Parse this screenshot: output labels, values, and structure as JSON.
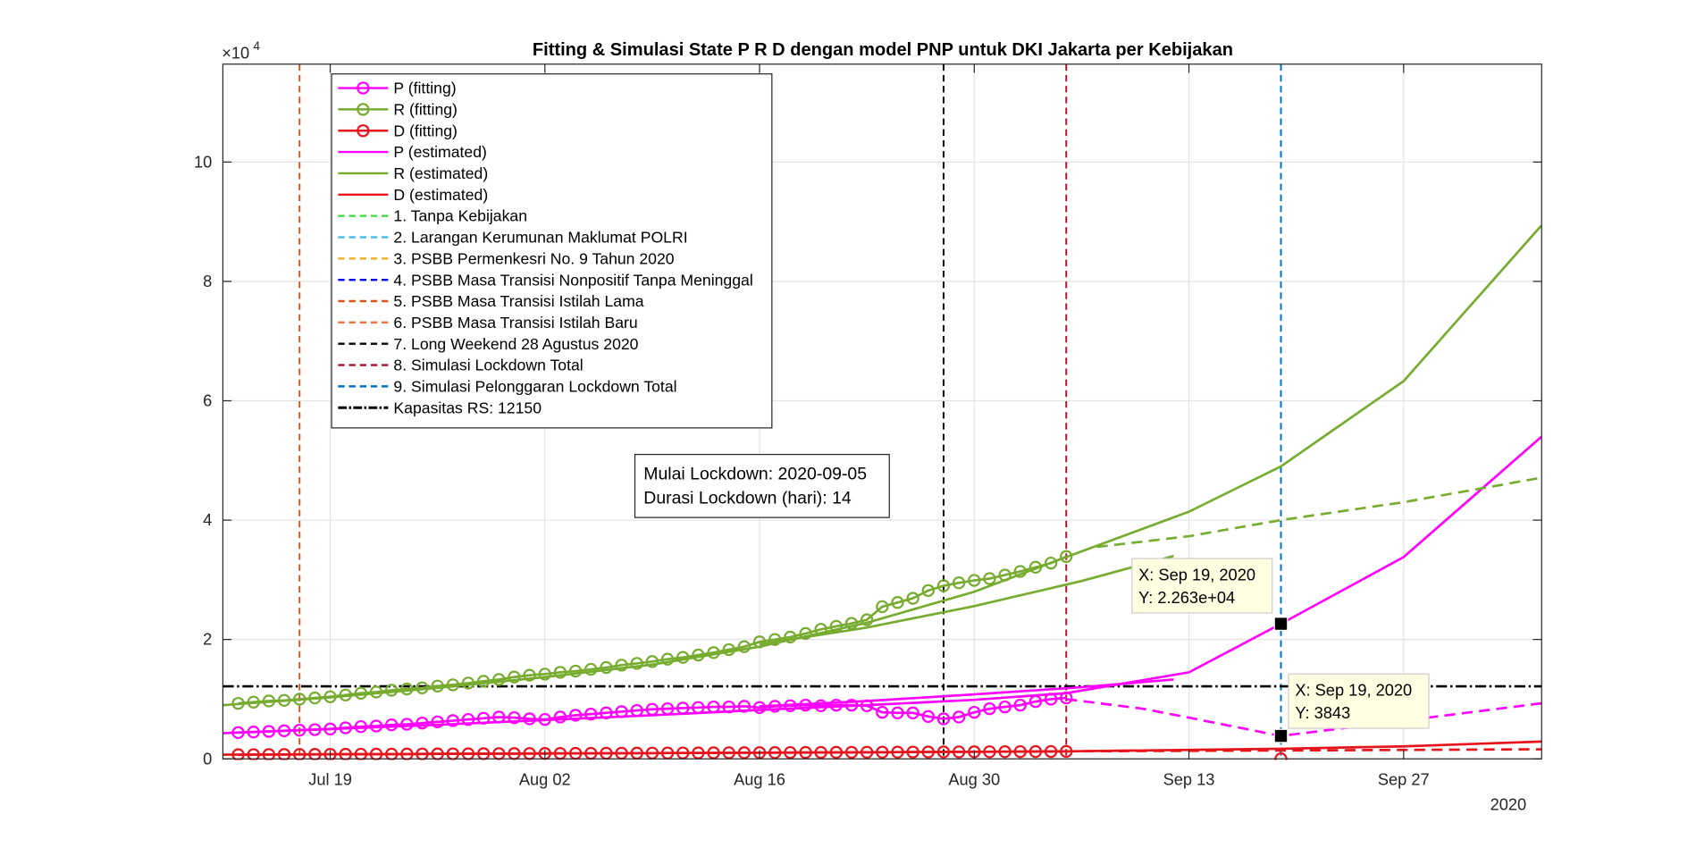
{
  "chart_data": {
    "type": "line",
    "title": "Fitting & Simulasi State  P R D dengan model PNP untuk DKI Jakarta per Kebijakan",
    "y_exponent": {
      "base": "×10",
      "power": "4"
    },
    "x_year_label": "2020",
    "grid": true,
    "xlim": [
      "2020-07-12",
      "2020-10-06"
    ],
    "xticks": [
      {
        "value": "2020-07-19",
        "label": "Jul 19"
      },
      {
        "value": "2020-08-02",
        "label": "Aug 02"
      },
      {
        "value": "2020-08-16",
        "label": "Aug 16"
      },
      {
        "value": "2020-08-30",
        "label": "Aug 30"
      },
      {
        "value": "2020-09-13",
        "label": "Sep 13"
      },
      {
        "value": "2020-09-27",
        "label": "Sep 27"
      }
    ],
    "ylim": [
      0,
      116400
    ],
    "yticks": [
      0,
      {
        "value": 20000,
        "label": "2"
      },
      {
        "value": 40000,
        "label": "4"
      },
      {
        "value": 60000,
        "label": "6"
      },
      {
        "value": 80000,
        "label": "8"
      },
      {
        "value": 100000,
        "label": "10"
      }
    ],
    "x": [
      "2020-07-13",
      "2020-07-14",
      "2020-07-15",
      "2020-07-16",
      "2020-07-17",
      "2020-07-18",
      "2020-07-19",
      "2020-07-20",
      "2020-07-21",
      "2020-07-22",
      "2020-07-23",
      "2020-07-24",
      "2020-07-25",
      "2020-07-26",
      "2020-07-27",
      "2020-07-28",
      "2020-07-29",
      "2020-07-30",
      "2020-07-31",
      "2020-08-01",
      "2020-08-02",
      "2020-08-03",
      "2020-08-04",
      "2020-08-05",
      "2020-08-06",
      "2020-08-07",
      "2020-08-08",
      "2020-08-09",
      "2020-08-10",
      "2020-08-11",
      "2020-08-12",
      "2020-08-13",
      "2020-08-14",
      "2020-08-15",
      "2020-08-16",
      "2020-08-17",
      "2020-08-18",
      "2020-08-19",
      "2020-08-20",
      "2020-08-21",
      "2020-08-22",
      "2020-08-23",
      "2020-08-24",
      "2020-08-25",
      "2020-08-26",
      "2020-08-27",
      "2020-08-28",
      "2020-08-29",
      "2020-08-30",
      "2020-08-31",
      "2020-09-01",
      "2020-09-02",
      "2020-09-03",
      "2020-09-04",
      "2020-09-05"
    ],
    "series": [
      {
        "name": "P (fitting)",
        "color": "#ff00ff",
        "marker": "circle",
        "line": "solid",
        "values": [
          4400,
          4500,
          4600,
          4700,
          4800,
          4900,
          5000,
          5200,
          5400,
          5500,
          5700,
          5800,
          6000,
          6200,
          6400,
          6600,
          6800,
          7000,
          6900,
          6700,
          6600,
          7000,
          7300,
          7500,
          7700,
          7900,
          8100,
          8300,
          8400,
          8500,
          8600,
          8700,
          8700,
          8800,
          8600,
          8800,
          8900,
          9000,
          8900,
          9000,
          9000,
          8900,
          7800,
          7700,
          7700,
          7100,
          6700,
          7000,
          7800,
          8400,
          8700,
          9000,
          9600,
          10000,
          10200
        ]
      },
      {
        "name": "R (fitting)",
        "color": "#77ac30",
        "marker": "circle",
        "line": "solid",
        "values": [
          9300,
          9500,
          9700,
          9800,
          10000,
          10200,
          10400,
          10700,
          11000,
          11200,
          11500,
          11700,
          11900,
          12200,
          12400,
          12700,
          13000,
          13300,
          13700,
          14000,
          14200,
          14500,
          14700,
          15000,
          15300,
          15700,
          16000,
          16300,
          16700,
          17000,
          17400,
          17800,
          18300,
          18800,
          19600,
          20000,
          20400,
          21000,
          21700,
          22200,
          22700,
          23300,
          25500,
          26200,
          26900,
          28200,
          29000,
          29500,
          29900,
          30200,
          30800,
          31400,
          32100,
          32800,
          33900
        ]
      },
      {
        "name": "D (fitting)",
        "color": "#e6141b",
        "marker": "circle",
        "line": "solid",
        "values": [
          700,
          710,
          720,
          730,
          740,
          750,
          760,
          770,
          780,
          790,
          800,
          810,
          820,
          830,
          840,
          850,
          860,
          870,
          880,
          890,
          900,
          910,
          920,
          930,
          940,
          950,
          960,
          970,
          980,
          990,
          1000,
          1010,
          1020,
          1030,
          1040,
          1050,
          1060,
          1070,
          1080,
          1090,
          1100,
          1110,
          1120,
          1130,
          1140,
          1150,
          1160,
          1170,
          1180,
          1190,
          1200,
          1210,
          1220,
          1230,
          1240
        ]
      },
      {
        "name": "P (estimated)",
        "color": "#ff00ff",
        "line": "solid",
        "x": [
          "2020-07-12",
          "2020-07-19",
          "2020-07-26",
          "2020-08-02",
          "2020-08-09",
          "2020-08-16",
          "2020-08-23",
          "2020-08-30",
          "2020-09-05",
          "2020-09-13",
          "2020-09-19",
          "2020-09-27",
          "2020-10-06"
        ],
        "values": [
          4300,
          5000,
          5700,
          6500,
          7300,
          8200,
          9000,
          9900,
          11000,
          14500,
          22630,
          33800,
          54000
        ]
      },
      {
        "name": "R (estimated)",
        "color": "#77ac30",
        "line": "solid",
        "x": [
          "2020-07-12",
          "2020-07-19",
          "2020-07-26",
          "2020-08-02",
          "2020-08-09",
          "2020-08-16",
          "2020-08-23",
          "2020-08-30",
          "2020-09-05",
          "2020-09-13",
          "2020-09-19",
          "2020-09-27",
          "2020-10-06"
        ],
        "values": [
          9000,
          10300,
          11900,
          13700,
          15800,
          18800,
          22800,
          28000,
          33800,
          41400,
          49000,
          63300,
          89400
        ]
      },
      {
        "name": "D (estimated)",
        "color": "#e6141b",
        "line": "solid",
        "x": [
          "2020-07-12",
          "2020-08-02",
          "2020-08-23",
          "2020-09-05",
          "2020-09-19",
          "2020-09-27",
          "2020-10-06"
        ],
        "values": [
          700,
          900,
          1100,
          1250,
          1700,
          2100,
          2900
        ]
      },
      {
        "color": "#ff00ff",
        "line": "solid",
        "x": [
          "2020-08-16",
          "2020-08-23",
          "2020-08-30",
          "2020-09-06",
          "2020-09-12"
        ],
        "values": [
          8800,
          9700,
          10800,
          12000,
          13300
        ]
      },
      {
        "color": "#77ac30",
        "line": "solid",
        "x": [
          "2020-08-16",
          "2020-08-23",
          "2020-08-30",
          "2020-09-06",
          "2020-09-12"
        ],
        "values": [
          19200,
          22000,
          25600,
          29800,
          34000
        ]
      },
      {
        "color": "#ff00ff",
        "line": "dashed",
        "x": [
          "2020-09-05",
          "2020-09-10",
          "2020-09-13",
          "2020-09-19",
          "2020-09-27",
          "2020-10-06"
        ],
        "values": [
          10000,
          8400,
          6900,
          3843,
          6400,
          9300
        ]
      },
      {
        "color": "#77ac30",
        "line": "dashed",
        "x": [
          "2020-09-07",
          "2020-09-13",
          "2020-09-19",
          "2020-09-27",
          "2020-10-06"
        ],
        "values": [
          35500,
          37300,
          40000,
          43000,
          47100
        ]
      },
      {
        "color": "#e6141b",
        "line": "dashed",
        "x": [
          "2020-09-05",
          "2020-09-19",
          "2020-10-06"
        ],
        "values": [
          1250,
          1400,
          1600
        ]
      },
      {
        "color": "#e6141b",
        "marker": "circle",
        "line": "none",
        "x": [
          "2020-09-19"
        ],
        "values": [
          0
        ]
      }
    ],
    "vlines": [
      {
        "name": "1. Tanpa Kebijakan",
        "color": "#4ddb4d"
      },
      {
        "name": "2. Larangan Kerumunan Maklumat POLRI",
        "color": "#4dbeee"
      },
      {
        "name": "3. PSBB Permenkesri No. 9 Tahun 2020",
        "color": "#edb120"
      },
      {
        "name": "4. PSBB Masa Transisi Nonpositif Tanpa Meninggal",
        "color": "#0000ff"
      },
      {
        "name": "5. PSBB Masa Transisi Istilah Lama",
        "color": "#d95319",
        "x": "2020-07-17"
      },
      {
        "name": "6. PSBB Masa Transisi Istilah Baru",
        "color": "#e8744a"
      },
      {
        "name": "7. Long Weekend 28 Agustus 2020",
        "color": "#000000",
        "x": "2020-08-28"
      },
      {
        "name": "8. Simulasi Lockdown Total",
        "color": "#a2142f",
        "x": "2020-09-05"
      },
      {
        "name": "9. Simulasi Pelonggaran Lockdown Total",
        "color": "#0072bd",
        "x": "2020-09-19"
      }
    ],
    "hline": {
      "name": "Kapasitas RS: 12150",
      "value": 12150,
      "color": "#000000"
    },
    "datatips": [
      {
        "x": "2020-09-19",
        "y": 22630,
        "x_label": "X: Sep 19, 2020",
        "y_label": "Y: 2.263e+04"
      },
      {
        "x": "2020-09-19",
        "y": 3843,
        "x_label": "X: Sep 19, 2020",
        "y_label": "Y: 3843"
      }
    ],
    "annotation": [
      "Mulai Lockdown: 2020-09-05",
      "Durasi Lockdown (hari): 14"
    ]
  }
}
